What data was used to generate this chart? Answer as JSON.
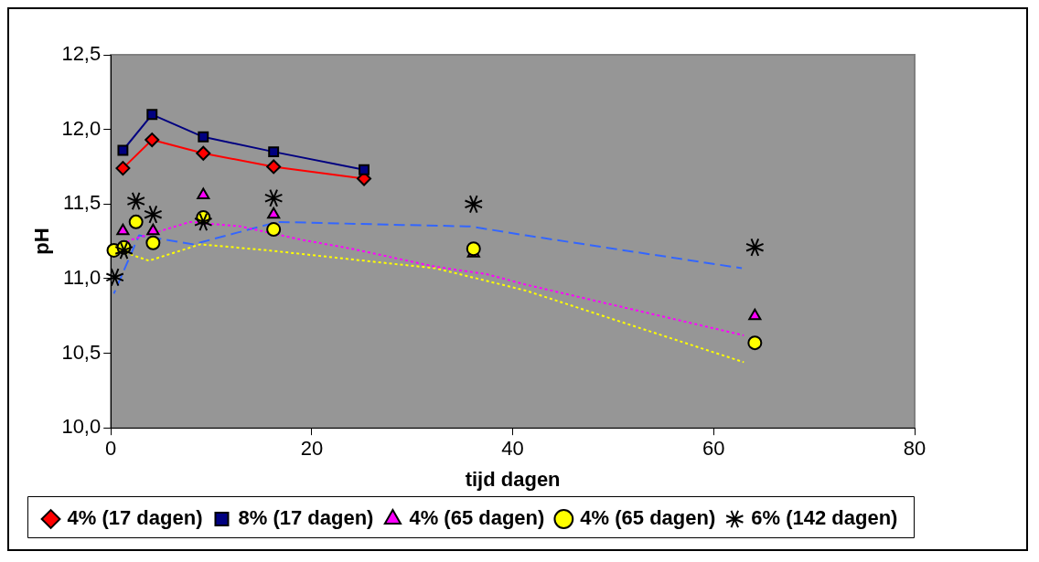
{
  "chart_data": {
    "type": "line",
    "xlabel": "tijd dagen",
    "ylabel": "pH",
    "xlim": [
      0,
      80
    ],
    "xticks": [
      0,
      20,
      40,
      60,
      80
    ],
    "ylim": [
      10,
      12.5
    ],
    "yticks": [
      {
        "value": 10,
        "label": "10,0"
      },
      {
        "value": 10.5,
        "label": "10,5"
      },
      {
        "value": 11,
        "label": "11,0"
      },
      {
        "value": 11.5,
        "label": "11,5"
      },
      {
        "value": 12,
        "label": "12,0"
      },
      {
        "value": 12.5,
        "label": "12,5"
      }
    ],
    "grid": false,
    "legend": "bottom",
    "series": [
      {
        "name": "4% (17 dagen)",
        "color": "#ff0000",
        "marker": "diamond",
        "line_style": "solid",
        "x": [
          1.2,
          4.1,
          9.2,
          16.2,
          25.2
        ],
        "values": [
          11.74,
          11.93,
          11.84,
          11.75,
          11.67
        ]
      },
      {
        "name": "8% (17 dagen)",
        "color": "#000080",
        "marker": "square",
        "line_style": "solid",
        "x": [
          1.2,
          4.1,
          9.2,
          16.2,
          25.2
        ],
        "values": [
          11.86,
          12.1,
          11.95,
          11.85,
          11.73
        ]
      },
      {
        "name": "4% (65 dagen)",
        "type": "scatter",
        "color": "#ff00ff",
        "marker": "triangle",
        "x": [
          1.2,
          4.2,
          9.2,
          16.2,
          36.1,
          64.1
        ],
        "values": [
          11.32,
          11.32,
          11.56,
          11.43,
          11.17,
          10.75
        ]
      },
      {
        "name": "4% (65 dagen)",
        "type": "scatter",
        "color": "#ffff00",
        "marker": "circle",
        "x": [
          0.3,
          1.3,
          2.5,
          4.2,
          9.2,
          16.2,
          36.1,
          64.1
        ],
        "values": [
          11.19,
          11.21,
          11.38,
          11.24,
          11.41,
          11.33,
          11.2,
          10.57
        ]
      },
      {
        "name": "6% (142 dagen)",
        "type": "scatter",
        "color": "#000000",
        "marker": "cross",
        "x": [
          0.4,
          1.3,
          2.5,
          4.2,
          9.2,
          16.2,
          36.1,
          64.1
        ],
        "values": [
          11.01,
          11.19,
          11.52,
          11.43,
          11.38,
          11.54,
          11.5,
          11.21
        ]
      },
      {
        "color": "#ff00ff",
        "marker": "none",
        "line_style": "dotted",
        "x": [
          1,
          2,
          7.9,
          12.9,
          19,
          24,
          32.3,
          37.4,
          41.3,
          63
        ],
        "values": [
          11.22,
          11.26,
          11.38,
          11.35,
          11.26,
          11.2,
          11.08,
          11.03,
          10.96,
          10.62
        ]
      },
      {
        "color": "#ffff00",
        "marker": "none",
        "line_style": "dotted",
        "x": [
          0.3,
          3.8,
          8.9,
          15.6,
          28,
          32.3,
          41.3,
          63
        ],
        "values": [
          11.2,
          11.12,
          11.23,
          11.19,
          11.1,
          11.07,
          10.92,
          10.44
        ]
      },
      {
        "color": "#3366ff",
        "marker": "none",
        "line_style": "dashed",
        "x": [
          0.3,
          2.8,
          8.2,
          16.6,
          29,
          35.8,
          41.3,
          62.8
        ],
        "values": [
          10.9,
          11.29,
          11.23,
          11.38,
          11.36,
          11.35,
          11.29,
          11.07
        ]
      }
    ]
  }
}
